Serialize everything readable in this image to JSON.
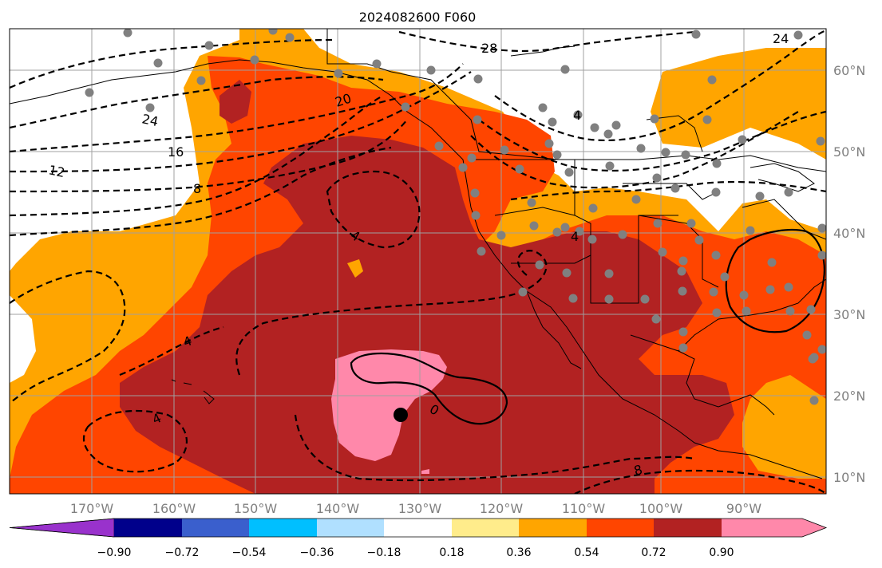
{
  "title": "2024082600 F060",
  "longitude_labels": [
    "170°W",
    "160°W",
    "150°W",
    "140°W",
    "130°W",
    "120°W",
    "110°W",
    "100°W",
    "90°W"
  ],
  "latitude_labels": [
    "60°N",
    "50°N",
    "40°N",
    "30°N",
    "20°N",
    "10°N"
  ],
  "contour_labels": [
    "28",
    "24",
    "24",
    "20",
    "16",
    "12",
    "8",
    "4",
    "4",
    "4",
    "4",
    "4",
    "0",
    "8"
  ],
  "colorbar": {
    "tick_labels": [
      "−0.90",
      "−0.72",
      "−0.54",
      "−0.36",
      "−0.18",
      "0.18",
      "0.36",
      "0.54",
      "0.72",
      "0.90"
    ],
    "colors": [
      "#9932cc",
      "#00008b",
      "#3a5fcd",
      "#00bfff",
      "#b0e0ff",
      "#ffffff",
      "#ffec8b",
      "#ffa500",
      "#ff4500",
      "#b22222",
      "#ff88aa"
    ]
  },
  "map_colors": {
    "pink": "#ff88aa",
    "darkred": "#b22222",
    "orangered": "#ff4500",
    "orange": "#ffa500",
    "white": "#ffffff",
    "stations": "#808080",
    "marker": "#000000"
  }
}
